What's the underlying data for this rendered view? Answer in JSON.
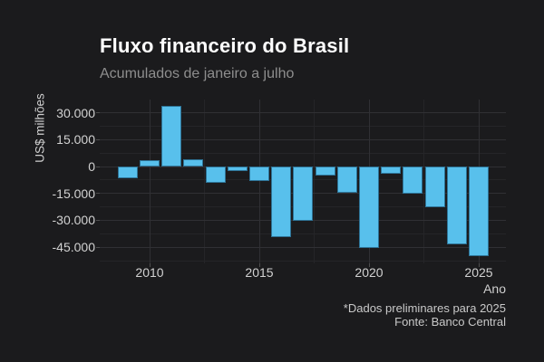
{
  "chart_data": {
    "type": "bar",
    "title": "Fluxo financeiro do Brasil",
    "subtitle": "Acumulados de janeiro a julho",
    "xlabel": "Ano",
    "ylabel": "US$ milhões",
    "categories": [
      2009,
      2010,
      2011,
      2012,
      2013,
      2014,
      2015,
      2016,
      2017,
      2018,
      2019,
      2020,
      2021,
      2022,
      2023,
      2024,
      2025
    ],
    "values": [
      -6700,
      3500,
      33800,
      4000,
      -9200,
      -2400,
      -7800,
      -39500,
      -30400,
      -4800,
      -14400,
      -45500,
      -4100,
      -15300,
      -22700,
      -43300,
      -50000
    ],
    "ylim": [
      -54000,
      37400
    ],
    "yticks": [
      30000,
      15000,
      0,
      -15000,
      -30000,
      -45000
    ],
    "ytick_labels": [
      "30.000",
      "15.000",
      "0",
      "-15.000",
      "-30.000",
      "-45.000"
    ],
    "xticks": [
      2010,
      2015,
      2020,
      2025
    ],
    "xtick_labels": [
      "2010",
      "2015",
      "2020",
      "2025"
    ],
    "grid": true,
    "legend": false
  },
  "caption": {
    "note": "*Dados preliminares para 2025",
    "source": "Fonte: Banco Central"
  },
  "colors": {
    "background": "#1b1b1d",
    "bar_fill": "#58c0ec",
    "bar_border": "#2e7396",
    "title_text": "#ffffff",
    "subtitle_text": "#8e8e8e",
    "axis_text": "#d2d2d2",
    "axis_title_text": "#cfcfcf",
    "caption_text": "#c9c9c9",
    "grid_major": "#303034",
    "grid_minor": "#252528",
    "tick_mark": "#4d4d4d"
  }
}
